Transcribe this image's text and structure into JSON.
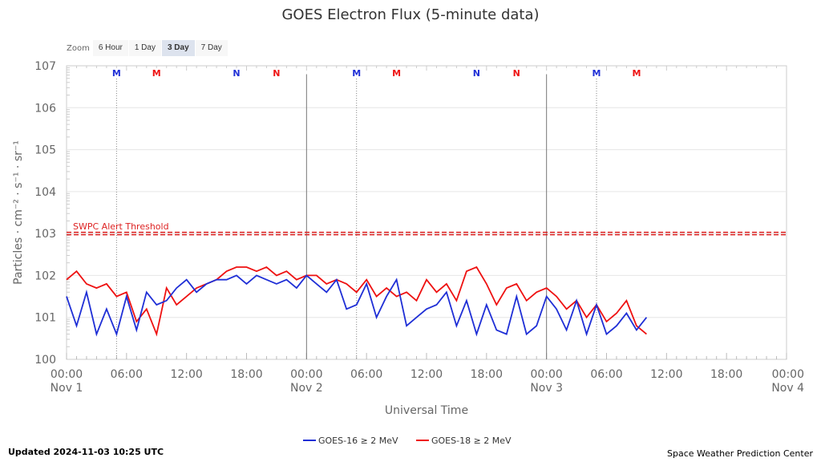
{
  "zoom": {
    "label": "Zoom",
    "buttons": [
      "6 Hour",
      "1 Day",
      "3 Day",
      "7 Day"
    ],
    "active": "3 Day"
  },
  "footer": {
    "updated": "Updated 2024-11-03 10:25 UTC",
    "credit": "Space Weather Prediction Center"
  },
  "colors": {
    "goes16": "#1f2fd6",
    "goes18": "#ee1111",
    "threshold": "#dd2222"
  },
  "chart_data": {
    "type": "line",
    "title": "GOES Electron Flux (5-minute data)",
    "xlabel": "Universal Time",
    "ylabel": "Particles · cm⁻² · s⁻¹ · sr⁻¹",
    "yscale": "log",
    "ylim_exponent": [
      0,
      7
    ],
    "ytick_labels": [
      "100",
      "101",
      "102",
      "103",
      "104",
      "105",
      "106",
      "107"
    ],
    "xlim_hours": [
      0,
      72
    ],
    "xtick_hours": [
      0,
      6,
      12,
      18,
      24,
      30,
      36,
      42,
      48,
      54,
      60,
      66,
      72
    ],
    "xtick_labels": [
      "00:00",
      "06:00",
      "12:00",
      "18:00",
      "00:00",
      "06:00",
      "12:00",
      "18:00",
      "00:00",
      "06:00",
      "12:00",
      "18:00",
      "00:00"
    ],
    "xtick_dates": [
      "Nov 1",
      "",
      "",
      "",
      "Nov 2",
      "",
      "",
      "",
      "Nov 3",
      "",
      "",
      "",
      "Nov 4"
    ],
    "day_boundaries_hours": [
      24,
      48
    ],
    "threshold": {
      "label": "SWPC Alert Threshold",
      "exponent": 3
    },
    "markers": [
      {
        "hour": 5,
        "label": "M",
        "series": "GOES-16",
        "line": true
      },
      {
        "hour": 9,
        "label": "M",
        "series": "GOES-18",
        "line": false
      },
      {
        "hour": 17,
        "label": "N",
        "series": "GOES-16",
        "line": false
      },
      {
        "hour": 21,
        "label": "N",
        "series": "GOES-18",
        "line": false
      },
      {
        "hour": 29,
        "label": "M",
        "series": "GOES-16",
        "line": true
      },
      {
        "hour": 33,
        "label": "M",
        "series": "GOES-18",
        "line": false
      },
      {
        "hour": 41,
        "label": "N",
        "series": "GOES-16",
        "line": false
      },
      {
        "hour": 45,
        "label": "N",
        "series": "GOES-18",
        "line": false
      },
      {
        "hour": 53,
        "label": "M",
        "series": "GOES-16",
        "line": true
      },
      {
        "hour": 57,
        "label": "M",
        "series": "GOES-18",
        "line": false
      }
    ],
    "series": [
      {
        "name": "GOES-16 ≥ 2 MeV",
        "hours": [
          0,
          1,
          2,
          3,
          4,
          5,
          6,
          7,
          8,
          9,
          10,
          11,
          12,
          13,
          14,
          15,
          16,
          17,
          18,
          19,
          20,
          21,
          22,
          23,
          24,
          25,
          26,
          27,
          28,
          29,
          30,
          31,
          32,
          33,
          34,
          35,
          36,
          37,
          38,
          39,
          40,
          41,
          42,
          43,
          44,
          45,
          46,
          47,
          48,
          49,
          50,
          51,
          52,
          53,
          54,
          55,
          56,
          57,
          58
        ],
        "values_exponent": [
          1.5,
          0.8,
          1.6,
          0.6,
          1.2,
          0.6,
          1.5,
          0.7,
          1.6,
          1.3,
          1.4,
          1.7,
          1.9,
          1.6,
          1.8,
          1.9,
          1.9,
          2.0,
          1.8,
          2.0,
          1.9,
          1.8,
          1.9,
          1.7,
          2.0,
          1.8,
          1.6,
          1.9,
          1.2,
          1.3,
          1.8,
          1.0,
          1.5,
          1.9,
          0.8,
          1.0,
          1.2,
          1.3,
          1.6,
          0.8,
          1.4,
          0.6,
          1.3,
          0.7,
          0.6,
          1.5,
          0.6,
          0.8,
          1.5,
          1.2,
          0.7,
          1.4,
          0.6,
          1.3,
          0.6,
          0.8,
          1.1,
          0.7,
          1.0
        ]
      },
      {
        "name": "GOES-18 ≥ 2 MeV",
        "hours": [
          0,
          1,
          2,
          3,
          4,
          5,
          6,
          7,
          8,
          9,
          10,
          11,
          12,
          13,
          14,
          15,
          16,
          17,
          18,
          19,
          20,
          21,
          22,
          23,
          24,
          25,
          26,
          27,
          28,
          29,
          30,
          31,
          32,
          33,
          34,
          35,
          36,
          37,
          38,
          39,
          40,
          41,
          42,
          43,
          44,
          45,
          46,
          47,
          48,
          49,
          50,
          51,
          52,
          53,
          54,
          55,
          56,
          57,
          58
        ],
        "values_exponent": [
          1.9,
          2.1,
          1.8,
          1.7,
          1.8,
          1.5,
          1.6,
          0.9,
          1.2,
          0.6,
          1.7,
          1.3,
          1.5,
          1.7,
          1.8,
          1.9,
          2.1,
          2.2,
          2.2,
          2.1,
          2.2,
          2.0,
          2.1,
          1.9,
          2.0,
          2.0,
          1.8,
          1.9,
          1.8,
          1.6,
          1.9,
          1.5,
          1.7,
          1.5,
          1.6,
          1.4,
          1.9,
          1.6,
          1.8,
          1.4,
          2.1,
          2.2,
          1.8,
          1.3,
          1.7,
          1.8,
          1.4,
          1.6,
          1.7,
          1.5,
          1.2,
          1.4,
          1.0,
          1.3,
          0.9,
          1.1,
          1.4,
          0.8,
          0.6
        ]
      }
    ],
    "legend_position": "bottom-center"
  }
}
